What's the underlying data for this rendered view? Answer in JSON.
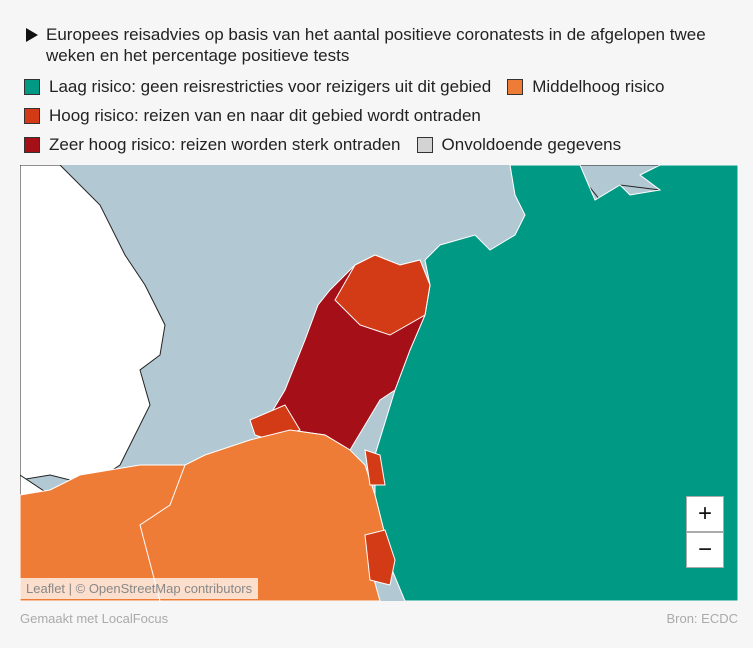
{
  "header": {
    "title": "Europees reisadvies op basis van het aantal positieve coronatests in de afgelopen twee weken en het percentage positieve tests"
  },
  "legend": [
    {
      "label": "Laag risico: geen reisrestricties voor reizigers uit dit gebied",
      "color": "#009a84"
    },
    {
      "label": "Middelhoog risico",
      "color": "#ee7c36"
    },
    {
      "label": "Hoog risico: reizen van en naar dit gebied wordt ontraden",
      "color": "#d33a16"
    },
    {
      "label": "Zeer hoog risico: reizen worden sterk ontraden",
      "color": "#a50f18"
    },
    {
      "label": "Onvoldoende gegevens",
      "color": "#d3d3d3"
    }
  ],
  "zoom": {
    "in": "+",
    "out": "−"
  },
  "attribution": "Leaflet | © OpenStreetMap contributors",
  "footer": {
    "made_with": "Gemaakt met LocalFocus",
    "source": "Bron: ECDC"
  }
}
